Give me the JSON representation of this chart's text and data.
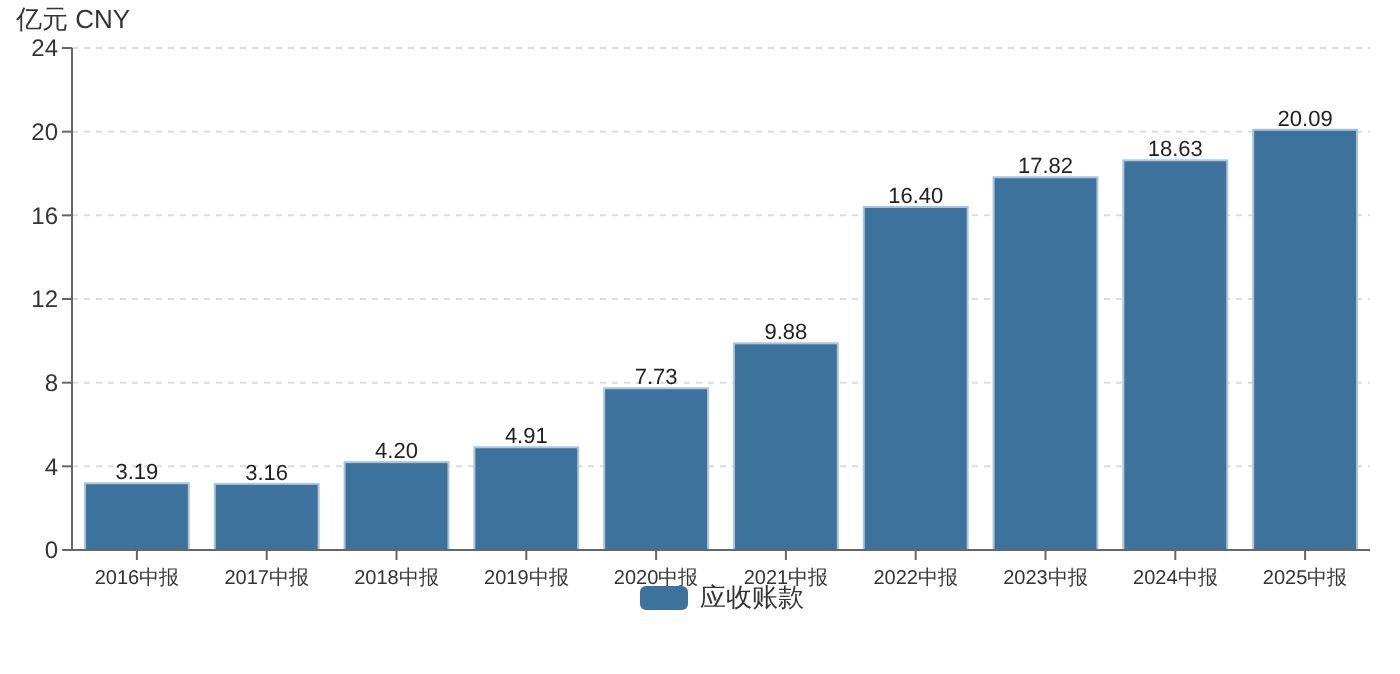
{
  "chart_data": {
    "type": "bar",
    "ylabel": "亿元  CNY",
    "categories": [
      "2016中报",
      "2017中报",
      "2018中报",
      "2019中报",
      "2020中报",
      "2021中报",
      "2022中报",
      "2023中报",
      "2024中报",
      "2025中报"
    ],
    "series": [
      {
        "name": "应收账款",
        "color": "#3d729c",
        "values": [
          3.19,
          3.16,
          4.2,
          4.91,
          7.73,
          9.88,
          16.4,
          17.82,
          18.63,
          20.09
        ]
      }
    ],
    "value_labels": [
      "3.19",
      "3.16",
      "4.20",
      "4.91",
      "7.73",
      "9.88",
      "16.40",
      "17.82",
      "18.63",
      "20.09"
    ],
    "ylim": [
      0,
      24
    ],
    "yticks": [
      0,
      4,
      8,
      12,
      16,
      20,
      24
    ],
    "grid": "y",
    "legend": "bottom"
  }
}
